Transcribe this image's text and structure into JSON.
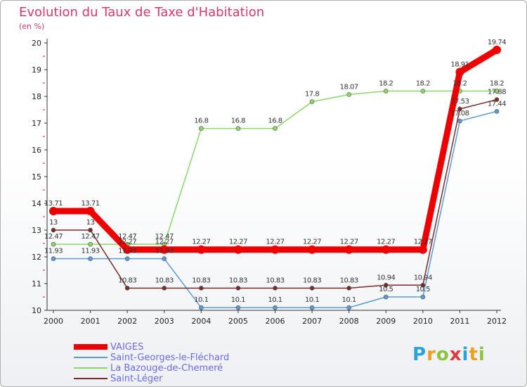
{
  "header": {
    "title": "Evolution du Taux de Taxe d'Habitation",
    "subtitle": "(en %)"
  },
  "logo": {
    "text": "Proxiti",
    "colors": [
      "#2aa3dd",
      "#f0a020",
      "#8cc43c",
      "#e03a3a",
      "#2aa3dd",
      "#f0a020",
      "#8cc43c"
    ]
  },
  "chart_data": {
    "type": "line",
    "title": "Evolution du Taux de Taxe d'Habitation",
    "subtitle": "(en %)",
    "xlabel": "",
    "ylabel": "",
    "x": [
      "2000",
      "2001",
      "2002",
      "2003",
      "2004",
      "2005",
      "2006",
      "2007",
      "2008",
      "2009",
      "2010",
      "2011",
      "2012"
    ],
    "ylim": [
      10,
      20
    ],
    "yticks": [
      "10",
      "11",
      "12",
      "13",
      "14",
      "15",
      "16",
      "17",
      "18",
      "19",
      "20"
    ],
    "grid": false,
    "legend": "bottom-left",
    "series": [
      {
        "name": "VAIGES",
        "color": "#ee0000",
        "width": 9,
        "values": [
          13.71,
          13.71,
          12.27,
          12.27,
          12.27,
          12.27,
          12.27,
          12.27,
          12.27,
          12.27,
          12.27,
          18.91,
          19.74
        ],
        "labels": [
          "13.71",
          "13.71",
          "12.27",
          "12.27",
          "12.27",
          "12.27",
          "12.27",
          "12.27",
          "12.27",
          "12.27",
          "12.27",
          "18.91",
          "19.74"
        ]
      },
      {
        "name": "Saint-Georges-le-Fléchard",
        "color": "#5b9ad2",
        "width": 1.5,
        "values": [
          11.93,
          11.93,
          11.93,
          11.93,
          10.1,
          10.1,
          10.1,
          10.1,
          10.1,
          10.5,
          10.5,
          17.08,
          17.44
        ],
        "labels": [
          "11.93",
          "11.93",
          "11.93",
          "11.93",
          "10.1",
          "10.1",
          "10.1",
          "10.1",
          "10.1",
          "10.5",
          "10.5",
          "17.08",
          "17.44"
        ]
      },
      {
        "name": "La Bazouge-de-Chemeré",
        "color": "#8ed66a",
        "width": 1.5,
        "values": [
          12.47,
          12.47,
          12.47,
          12.47,
          16.8,
          16.8,
          16.8,
          17.8,
          18.07,
          18.2,
          18.2,
          18.2,
          18.2
        ],
        "labels": [
          "12.47",
          "12.47",
          "12.47",
          "12.47",
          "16.8",
          "16.8",
          "16.8",
          "17.8",
          "18.07",
          "18.2",
          "18.2",
          "18.2",
          "18.2"
        ]
      },
      {
        "name": "Saint-Léger",
        "color": "#7a2a2a",
        "width": 1.5,
        "values": [
          13,
          13,
          10.83,
          10.83,
          10.83,
          10.83,
          10.83,
          10.83,
          10.83,
          10.94,
          10.94,
          17.53,
          17.88
        ],
        "labels": [
          "13",
          "13",
          "10.83",
          "10.83",
          "10.83",
          "10.83",
          "10.83",
          "10.83",
          "10.83",
          "10.94",
          "10.94",
          "17.53",
          "17.88"
        ]
      }
    ]
  }
}
